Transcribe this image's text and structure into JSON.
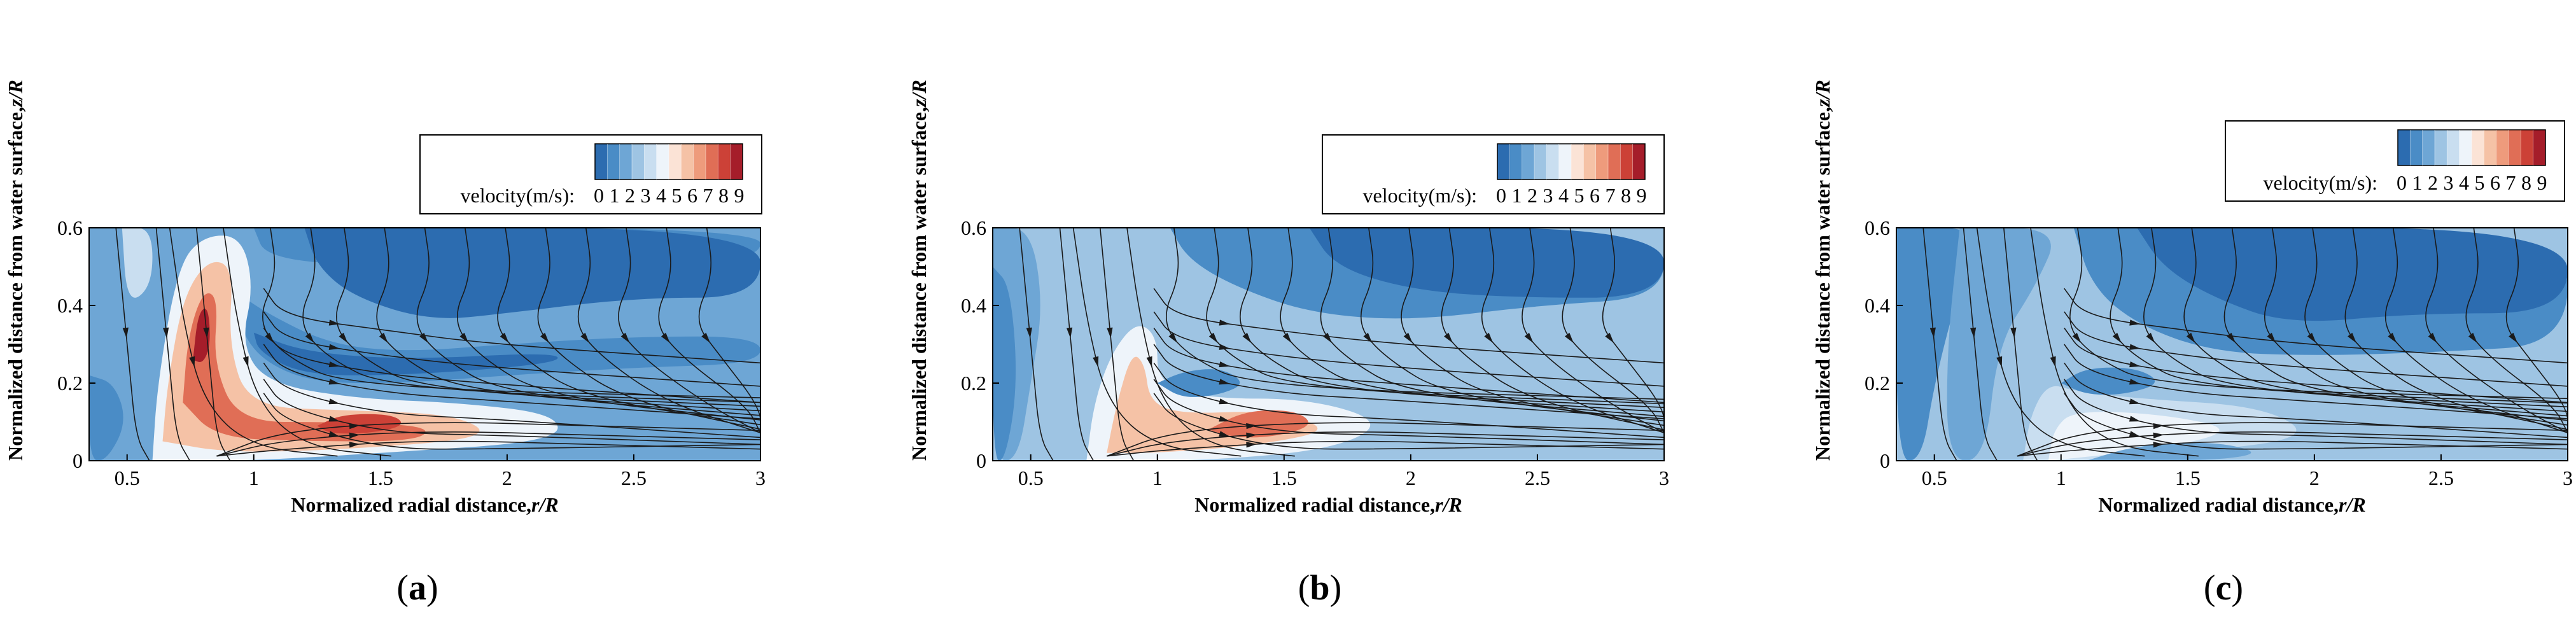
{
  "colorscale": {
    "label": "velocity(m/s):",
    "ticks": [
      "0",
      "1",
      "2",
      "3",
      "4",
      "5",
      "6",
      "7",
      "8",
      "9"
    ],
    "colors": [
      "#2c6cb0",
      "#4a8cc6",
      "#6ea6d5",
      "#9ec4e3",
      "#c9def0",
      "#eef4fa",
      "#fbe3d6",
      "#f5c2a6",
      "#ee9b7c",
      "#e06e56",
      "#cc4137",
      "#a51d2a"
    ]
  },
  "chart_data": [
    {
      "type": "contour",
      "panel_label": "(a)",
      "panel_letter": "a",
      "xlabel": "Normalized radial distance,",
      "xlabel_var": "r/R",
      "ylabel": "Normalized distance from water surface,",
      "ylabel_var": "z/R",
      "xlim": [
        0.35,
        3
      ],
      "ylim": [
        0,
        0.6
      ],
      "xticks": [
        "0.5",
        "1",
        "1.5",
        "2",
        "2.5",
        "3"
      ],
      "yticks": [
        "0",
        "0.2",
        "0.4",
        "0.6"
      ],
      "background_level": 2,
      "regions": [
        {
          "level": 1,
          "points": [
            [
              1.0,
              0.6
            ],
            [
              3.0,
              0.6
            ],
            [
              3.0,
              0.52
            ],
            [
              2.6,
              0.52
            ],
            [
              2.0,
              0.49
            ],
            [
              1.5,
              0.5
            ],
            [
              1.05,
              0.52
            ]
          ]
        },
        {
          "level": 0,
          "points": [
            [
              1.2,
              0.6
            ],
            [
              3.0,
              0.6
            ],
            [
              3.0,
              0.42
            ],
            [
              2.5,
              0.42
            ],
            [
              2.0,
              0.38
            ],
            [
              1.7,
              0.36
            ],
            [
              1.4,
              0.42
            ],
            [
              1.25,
              0.5
            ]
          ]
        },
        {
          "level": 1,
          "points": [
            [
              0.92,
              0.44
            ],
            [
              1.05,
              0.38
            ],
            [
              1.3,
              0.3
            ],
            [
              1.6,
              0.28
            ],
            [
              2.0,
              0.3
            ],
            [
              2.5,
              0.32
            ],
            [
              3.0,
              0.32
            ],
            [
              3.0,
              0.25
            ],
            [
              2.5,
              0.24
            ],
            [
              2.0,
              0.22
            ],
            [
              1.6,
              0.2
            ],
            [
              1.25,
              0.2
            ],
            [
              1.05,
              0.25
            ],
            [
              0.95,
              0.33
            ]
          ]
        },
        {
          "level": 0,
          "points": [
            [
              1.0,
              0.33
            ],
            [
              1.2,
              0.28
            ],
            [
              1.6,
              0.26
            ],
            [
              2.2,
              0.28
            ],
            [
              2.2,
              0.25
            ],
            [
              1.6,
              0.22
            ],
            [
              1.2,
              0.22
            ],
            [
              1.02,
              0.28
            ]
          ]
        },
        {
          "level": 1,
          "points": [
            [
              0.35,
              0.22
            ],
            [
              0.45,
              0.2
            ],
            [
              0.5,
              0.1
            ],
            [
              0.42,
              0.0
            ],
            [
              0.35,
              0.0
            ]
          ]
        },
        {
          "level": 4,
          "points": [
            [
              0.48,
              0.6
            ],
            [
              0.6,
              0.6
            ],
            [
              0.6,
              0.45
            ],
            [
              0.5,
              0.4
            ]
          ]
        },
        {
          "level": 5,
          "points": [
            [
              0.6,
              0.0
            ],
            [
              0.62,
              0.2
            ],
            [
              0.7,
              0.5
            ],
            [
              0.8,
              0.58
            ],
            [
              0.95,
              0.58
            ],
            [
              1.0,
              0.45
            ],
            [
              0.95,
              0.3
            ],
            [
              1.05,
              0.2
            ],
            [
              1.4,
              0.16
            ],
            [
              1.8,
              0.15
            ],
            [
              2.2,
              0.12
            ],
            [
              2.2,
              0.05
            ],
            [
              1.5,
              0.02
            ],
            [
              1.0,
              0.0
            ]
          ]
        },
        {
          "level": 7,
          "points": [
            [
              0.64,
              0.05
            ],
            [
              0.66,
              0.2
            ],
            [
              0.72,
              0.42
            ],
            [
              0.82,
              0.52
            ],
            [
              0.92,
              0.5
            ],
            [
              0.9,
              0.3
            ],
            [
              0.98,
              0.14
            ],
            [
              1.35,
              0.13
            ],
            [
              1.8,
              0.12
            ],
            [
              1.95,
              0.06
            ],
            [
              1.4,
              0.03
            ],
            [
              0.9,
              0.02
            ]
          ]
        },
        {
          "level": 9,
          "points": [
            [
              0.72,
              0.15
            ],
            [
              0.74,
              0.32
            ],
            [
              0.8,
              0.44
            ],
            [
              0.86,
              0.42
            ],
            [
              0.84,
              0.25
            ],
            [
              0.94,
              0.1
            ],
            [
              1.3,
              0.1
            ],
            [
              1.7,
              0.09
            ],
            [
              1.65,
              0.05
            ],
            [
              1.2,
              0.05
            ],
            [
              0.85,
              0.06
            ]
          ]
        },
        {
          "level": 11,
          "points": [
            [
              0.76,
              0.26
            ],
            [
              0.78,
              0.38
            ],
            [
              0.82,
              0.4
            ],
            [
              0.83,
              0.3
            ],
            [
              0.8,
              0.25
            ]
          ]
        },
        {
          "level": 10,
          "points": [
            [
              1.25,
              0.09
            ],
            [
              1.35,
              0.12
            ],
            [
              1.55,
              0.12
            ],
            [
              1.6,
              0.09
            ],
            [
              1.45,
              0.07
            ],
            [
              1.3,
              0.07
            ]
          ]
        }
      ]
    },
    {
      "type": "contour",
      "panel_label": "(b)",
      "panel_letter": "b",
      "xlabel": "Normalized radial distance,",
      "xlabel_var": "r/R",
      "ylabel": "Normalized distance from water surface,",
      "ylabel_var": "z/R",
      "xlim": [
        0.35,
        3
      ],
      "ylim": [
        0,
        0.6
      ],
      "xticks": [
        "0.5",
        "1",
        "1.5",
        "2",
        "2.5",
        "3"
      ],
      "yticks": [
        "0",
        "0.2",
        "0.4",
        "0.6"
      ],
      "background_level": 3,
      "regions": [
        {
          "level": 1,
          "points": [
            [
              1.05,
              0.6
            ],
            [
              3.0,
              0.6
            ],
            [
              3.0,
              0.42
            ],
            [
              2.5,
              0.4
            ],
            [
              2.0,
              0.36
            ],
            [
              1.6,
              0.38
            ],
            [
              1.3,
              0.45
            ],
            [
              1.12,
              0.52
            ]
          ]
        },
        {
          "level": 0,
          "points": [
            [
              1.6,
              0.6
            ],
            [
              3.0,
              0.6
            ],
            [
              3.0,
              0.42
            ],
            [
              2.4,
              0.42
            ],
            [
              2.0,
              0.44
            ],
            [
              1.7,
              0.5
            ]
          ]
        },
        {
          "level": 2,
          "points": [
            [
              0.35,
              0.6
            ],
            [
              0.5,
              0.6
            ],
            [
              0.55,
              0.4
            ],
            [
              0.5,
              0.2
            ],
            [
              0.45,
              0.0
            ],
            [
              0.35,
              0.0
            ]
          ]
        },
        {
          "level": 1,
          "points": [
            [
              0.35,
              0.5
            ],
            [
              0.42,
              0.45
            ],
            [
              0.45,
              0.2
            ],
            [
              0.4,
              0.0
            ],
            [
              0.35,
              0.0
            ]
          ]
        },
        {
          "level": 5,
          "points": [
            [
              0.72,
              0.0
            ],
            [
              0.75,
              0.15
            ],
            [
              0.82,
              0.28
            ],
            [
              0.92,
              0.36
            ],
            [
              1.0,
              0.32
            ],
            [
              1.0,
              0.2
            ],
            [
              1.2,
              0.16
            ],
            [
              1.6,
              0.16
            ],
            [
              1.9,
              0.1
            ],
            [
              1.7,
              0.03
            ],
            [
              1.2,
              0.0
            ]
          ]
        },
        {
          "level": 7,
          "points": [
            [
              0.8,
              0.02
            ],
            [
              0.84,
              0.15
            ],
            [
              0.9,
              0.28
            ],
            [
              0.95,
              0.25
            ],
            [
              0.97,
              0.15
            ],
            [
              1.1,
              0.12
            ],
            [
              1.45,
              0.13
            ],
            [
              1.7,
              0.08
            ],
            [
              1.4,
              0.04
            ],
            [
              1.0,
              0.02
            ]
          ]
        },
        {
          "level": 9,
          "points": [
            [
              1.2,
              0.08
            ],
            [
              1.35,
              0.13
            ],
            [
              1.55,
              0.13
            ],
            [
              1.62,
              0.09
            ],
            [
              1.45,
              0.06
            ],
            [
              1.3,
              0.06
            ]
          ]
        },
        {
          "level": 1,
          "points": [
            [
              1.0,
              0.2
            ],
            [
              1.1,
              0.23
            ],
            [
              1.25,
              0.24
            ],
            [
              1.35,
              0.2
            ],
            [
              1.25,
              0.17
            ],
            [
              1.1,
              0.16
            ]
          ]
        }
      ]
    },
    {
      "type": "contour",
      "panel_label": "(c)",
      "panel_letter": "c",
      "xlabel": "Normalized radial distance,",
      "xlabel_var": "r/R",
      "ylabel": "Normalized distance from water surface,",
      "ylabel_var": "z/R",
      "xlim": [
        0.35,
        3
      ],
      "ylim": [
        0,
        0.6
      ],
      "xticks": [
        "0.5",
        "1",
        "1.5",
        "2",
        "2.5",
        "3"
      ],
      "yticks": [
        "0",
        "0.2",
        "0.4",
        "0.6"
      ],
      "background_level": 3,
      "regions": [
        {
          "level": 1,
          "points": [
            [
              0.35,
              0.6
            ],
            [
              0.7,
              0.6
            ],
            [
              0.6,
              0.45
            ],
            [
              0.5,
              0.2
            ],
            [
              0.45,
              0.0
            ],
            [
              0.35,
              0.0
            ]
          ]
        },
        {
          "level": 2,
          "points": [
            [
              0.6,
              0.6
            ],
            [
              1.0,
              0.6
            ],
            [
              0.9,
              0.45
            ],
            [
              0.75,
              0.3
            ],
            [
              0.7,
              0.0
            ],
            [
              0.55,
              0.0
            ],
            [
              0.55,
              0.3
            ]
          ]
        },
        {
          "level": 1,
          "points": [
            [
              1.05,
              0.6
            ],
            [
              3.0,
              0.6
            ],
            [
              3.0,
              0.3
            ],
            [
              2.5,
              0.28
            ],
            [
              2.0,
              0.27
            ],
            [
              1.6,
              0.28
            ],
            [
              1.3,
              0.35
            ],
            [
              1.12,
              0.45
            ]
          ]
        },
        {
          "level": 0,
          "points": [
            [
              1.3,
              0.6
            ],
            [
              3.0,
              0.6
            ],
            [
              3.0,
              0.38
            ],
            [
              2.4,
              0.38
            ],
            [
              1.9,
              0.35
            ],
            [
              1.6,
              0.42
            ],
            [
              1.4,
              0.5
            ]
          ]
        },
        {
          "level": 4,
          "points": [
            [
              0.85,
              0.0
            ],
            [
              0.88,
              0.12
            ],
            [
              0.95,
              0.2
            ],
            [
              1.05,
              0.18
            ],
            [
              1.3,
              0.16
            ],
            [
              1.8,
              0.14
            ],
            [
              2.0,
              0.06
            ],
            [
              1.5,
              0.02
            ],
            [
              1.1,
              0.0
            ]
          ]
        },
        {
          "level": 5,
          "points": [
            [
              0.95,
              0.0
            ],
            [
              0.97,
              0.08
            ],
            [
              1.05,
              0.13
            ],
            [
              1.4,
              0.12
            ],
            [
              1.7,
              0.08
            ],
            [
              1.4,
              0.03
            ],
            [
              1.1,
              0.01
            ]
          ]
        },
        {
          "level": 1,
          "points": [
            [
              1.0,
              0.2
            ],
            [
              1.1,
              0.24
            ],
            [
              1.3,
              0.24
            ],
            [
              1.4,
              0.2
            ],
            [
              1.25,
              0.17
            ],
            [
              1.1,
              0.17
            ]
          ]
        },
        {
          "level": 2,
          "points": [
            [
              1.1,
              0.0
            ],
            [
              1.3,
              0.04
            ],
            [
              1.6,
              0.05
            ],
            [
              1.8,
              0.02
            ],
            [
              1.6,
              0.0
            ]
          ]
        }
      ]
    }
  ]
}
